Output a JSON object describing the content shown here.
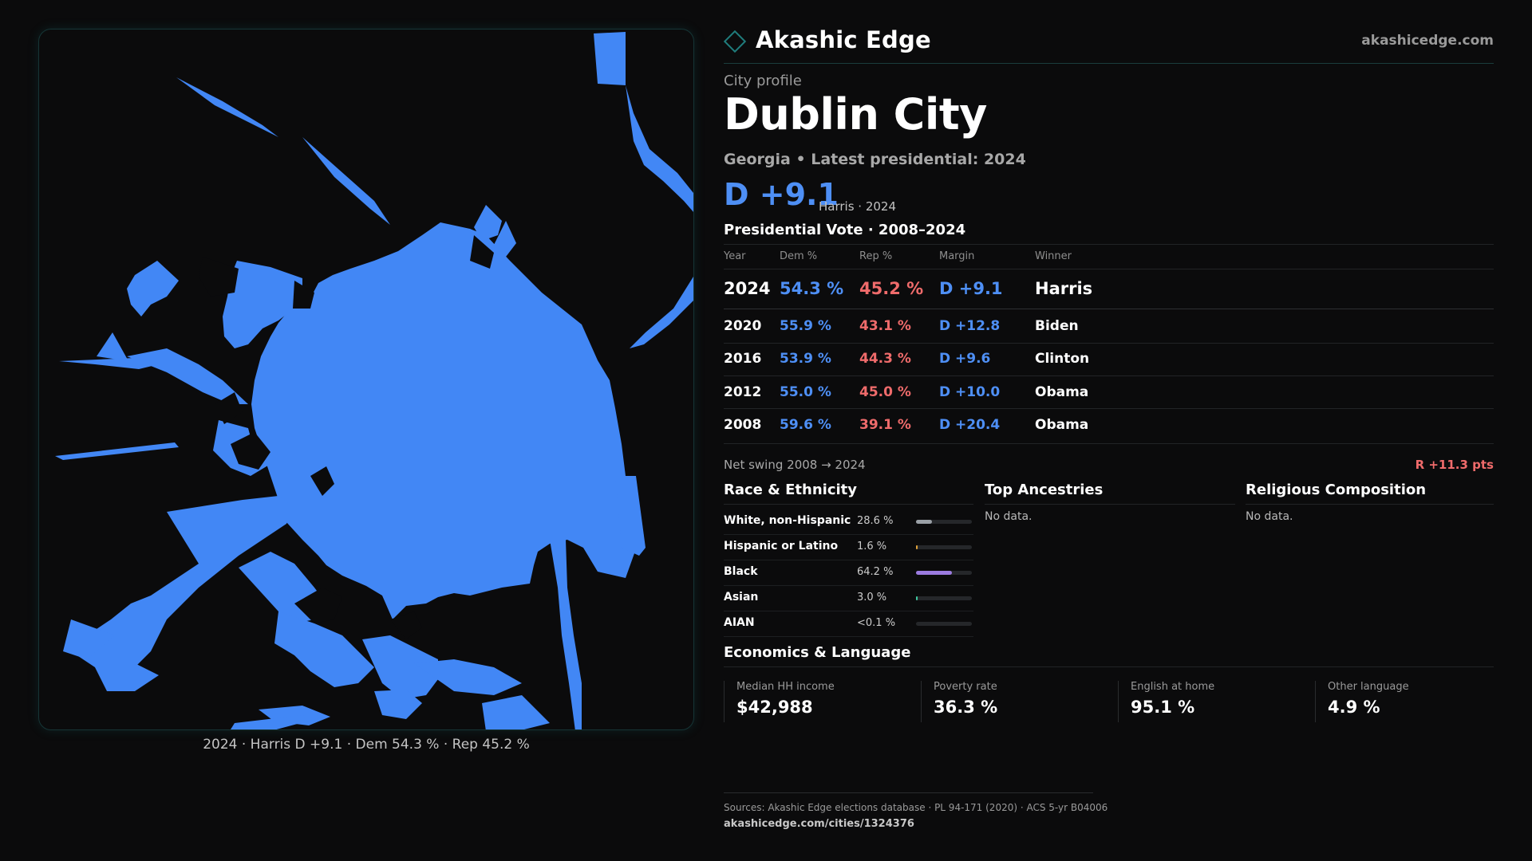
{
  "map": {
    "caption": "2024 · Harris D +9.1 · Dem 54.3 % · Rep 45.2 %",
    "fill_color": "#4287f5"
  },
  "brand": {
    "name": "Akashic Edge",
    "url": "akashicedge.com",
    "icon": "diamond-outline-icon",
    "accent_color": "#1f7d7d"
  },
  "profile": {
    "eyebrow": "City profile",
    "title": "Dublin City",
    "subtitle": "Georgia • Latest presidential: 2024",
    "margin": "D +9.1",
    "margin_note": "Harris · 2024"
  },
  "votes": {
    "heading": "Presidential Vote · 2008–2024",
    "headers": {
      "year": "Year",
      "dem": "Dem %",
      "rep": "Rep %",
      "margin": "Margin",
      "winner": "Winner"
    },
    "rows": [
      {
        "year": "2024",
        "dem": "54.3 %",
        "rep": "45.2 %",
        "margin": "D +9.1",
        "winner": "Harris"
      },
      {
        "year": "2020",
        "dem": "55.9 %",
        "rep": "43.1 %",
        "margin": "D +12.8",
        "winner": "Biden"
      },
      {
        "year": "2016",
        "dem": "53.9 %",
        "rep": "44.3 %",
        "margin": "D +9.6",
        "winner": "Clinton"
      },
      {
        "year": "2012",
        "dem": "55.0 %",
        "rep": "45.0 %",
        "margin": "D +10.0",
        "winner": "Obama"
      },
      {
        "year": "2008",
        "dem": "59.6 %",
        "rep": "39.1 %",
        "margin": "D +20.4",
        "winner": "Obama"
      }
    ],
    "swing_label": "Net swing 2008 → 2024",
    "swing_value": "R +11.3 pts",
    "dem_color": "#4e8ff5",
    "rep_color": "#ef6b6b"
  },
  "race": {
    "heading": "Race & Ethnicity",
    "rows": [
      {
        "label": "White, non-Hispanic",
        "value": "28.6 %",
        "share": 0.286,
        "color": "#9aa0a6"
      },
      {
        "label": "Hispanic or Latino",
        "value": "1.6 %",
        "share": 0.016,
        "color": "#e0a23a"
      },
      {
        "label": "Black",
        "value": "64.2 %",
        "share": 0.642,
        "color": "#9b7be0"
      },
      {
        "label": "Asian",
        "value": "3.0 %",
        "share": 0.03,
        "color": "#3fc9a0"
      },
      {
        "label": "AIAN",
        "value": "<0.1 %",
        "share": 0.0,
        "color": "#c0c0c0"
      }
    ]
  },
  "ancestries": {
    "heading": "Top Ancestries",
    "empty": "No data."
  },
  "religion": {
    "heading": "Religious Composition",
    "empty": "No data."
  },
  "economics": {
    "heading": "Economics & Language",
    "stats": [
      {
        "label": "Median HH income",
        "value": "$42,988"
      },
      {
        "label": "Poverty rate",
        "value": "36.3 %"
      },
      {
        "label": "English at home",
        "value": "95.1 %"
      },
      {
        "label": "Other language",
        "value": "4.9 %"
      }
    ]
  },
  "footer": {
    "sources": "Sources: Akashic Edge elections database · PL 94-171 (2020) · ACS 5-yr B04006",
    "link": "akashicedge.com/cities/1324376"
  }
}
